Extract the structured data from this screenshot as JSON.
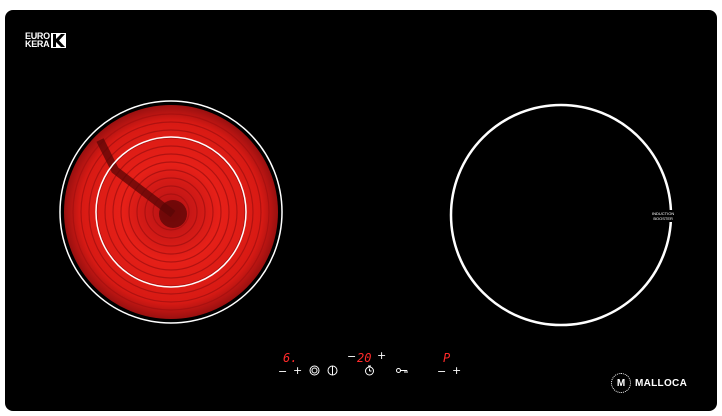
{
  "brand_logo": {
    "line1": "EURO",
    "line2": "KERA"
  },
  "zones": {
    "left": {
      "type": "radiant",
      "state": "heating"
    },
    "right": {
      "type": "induction",
      "booster_label_line1": "INDUCTION",
      "booster_label_line2": "BOOSTER"
    }
  },
  "controls": {
    "left_zone": {
      "level": "6.",
      "minus": "−",
      "plus": "+"
    },
    "timer": {
      "prefix": "−",
      "value": "20",
      "suffix": "+"
    },
    "right_zone": {
      "level": "P",
      "minus": "−",
      "plus": "+"
    },
    "icons": [
      "zone-select-icon",
      "power-icon",
      "timer-icon",
      "key-lock-icon"
    ]
  },
  "maker": {
    "badge": "M",
    "name": "MALLOCA"
  },
  "colors": {
    "glass": "#000000",
    "element_glow": "#e0201c",
    "display_red": "#ff2a2a",
    "print": "#ffffff"
  }
}
